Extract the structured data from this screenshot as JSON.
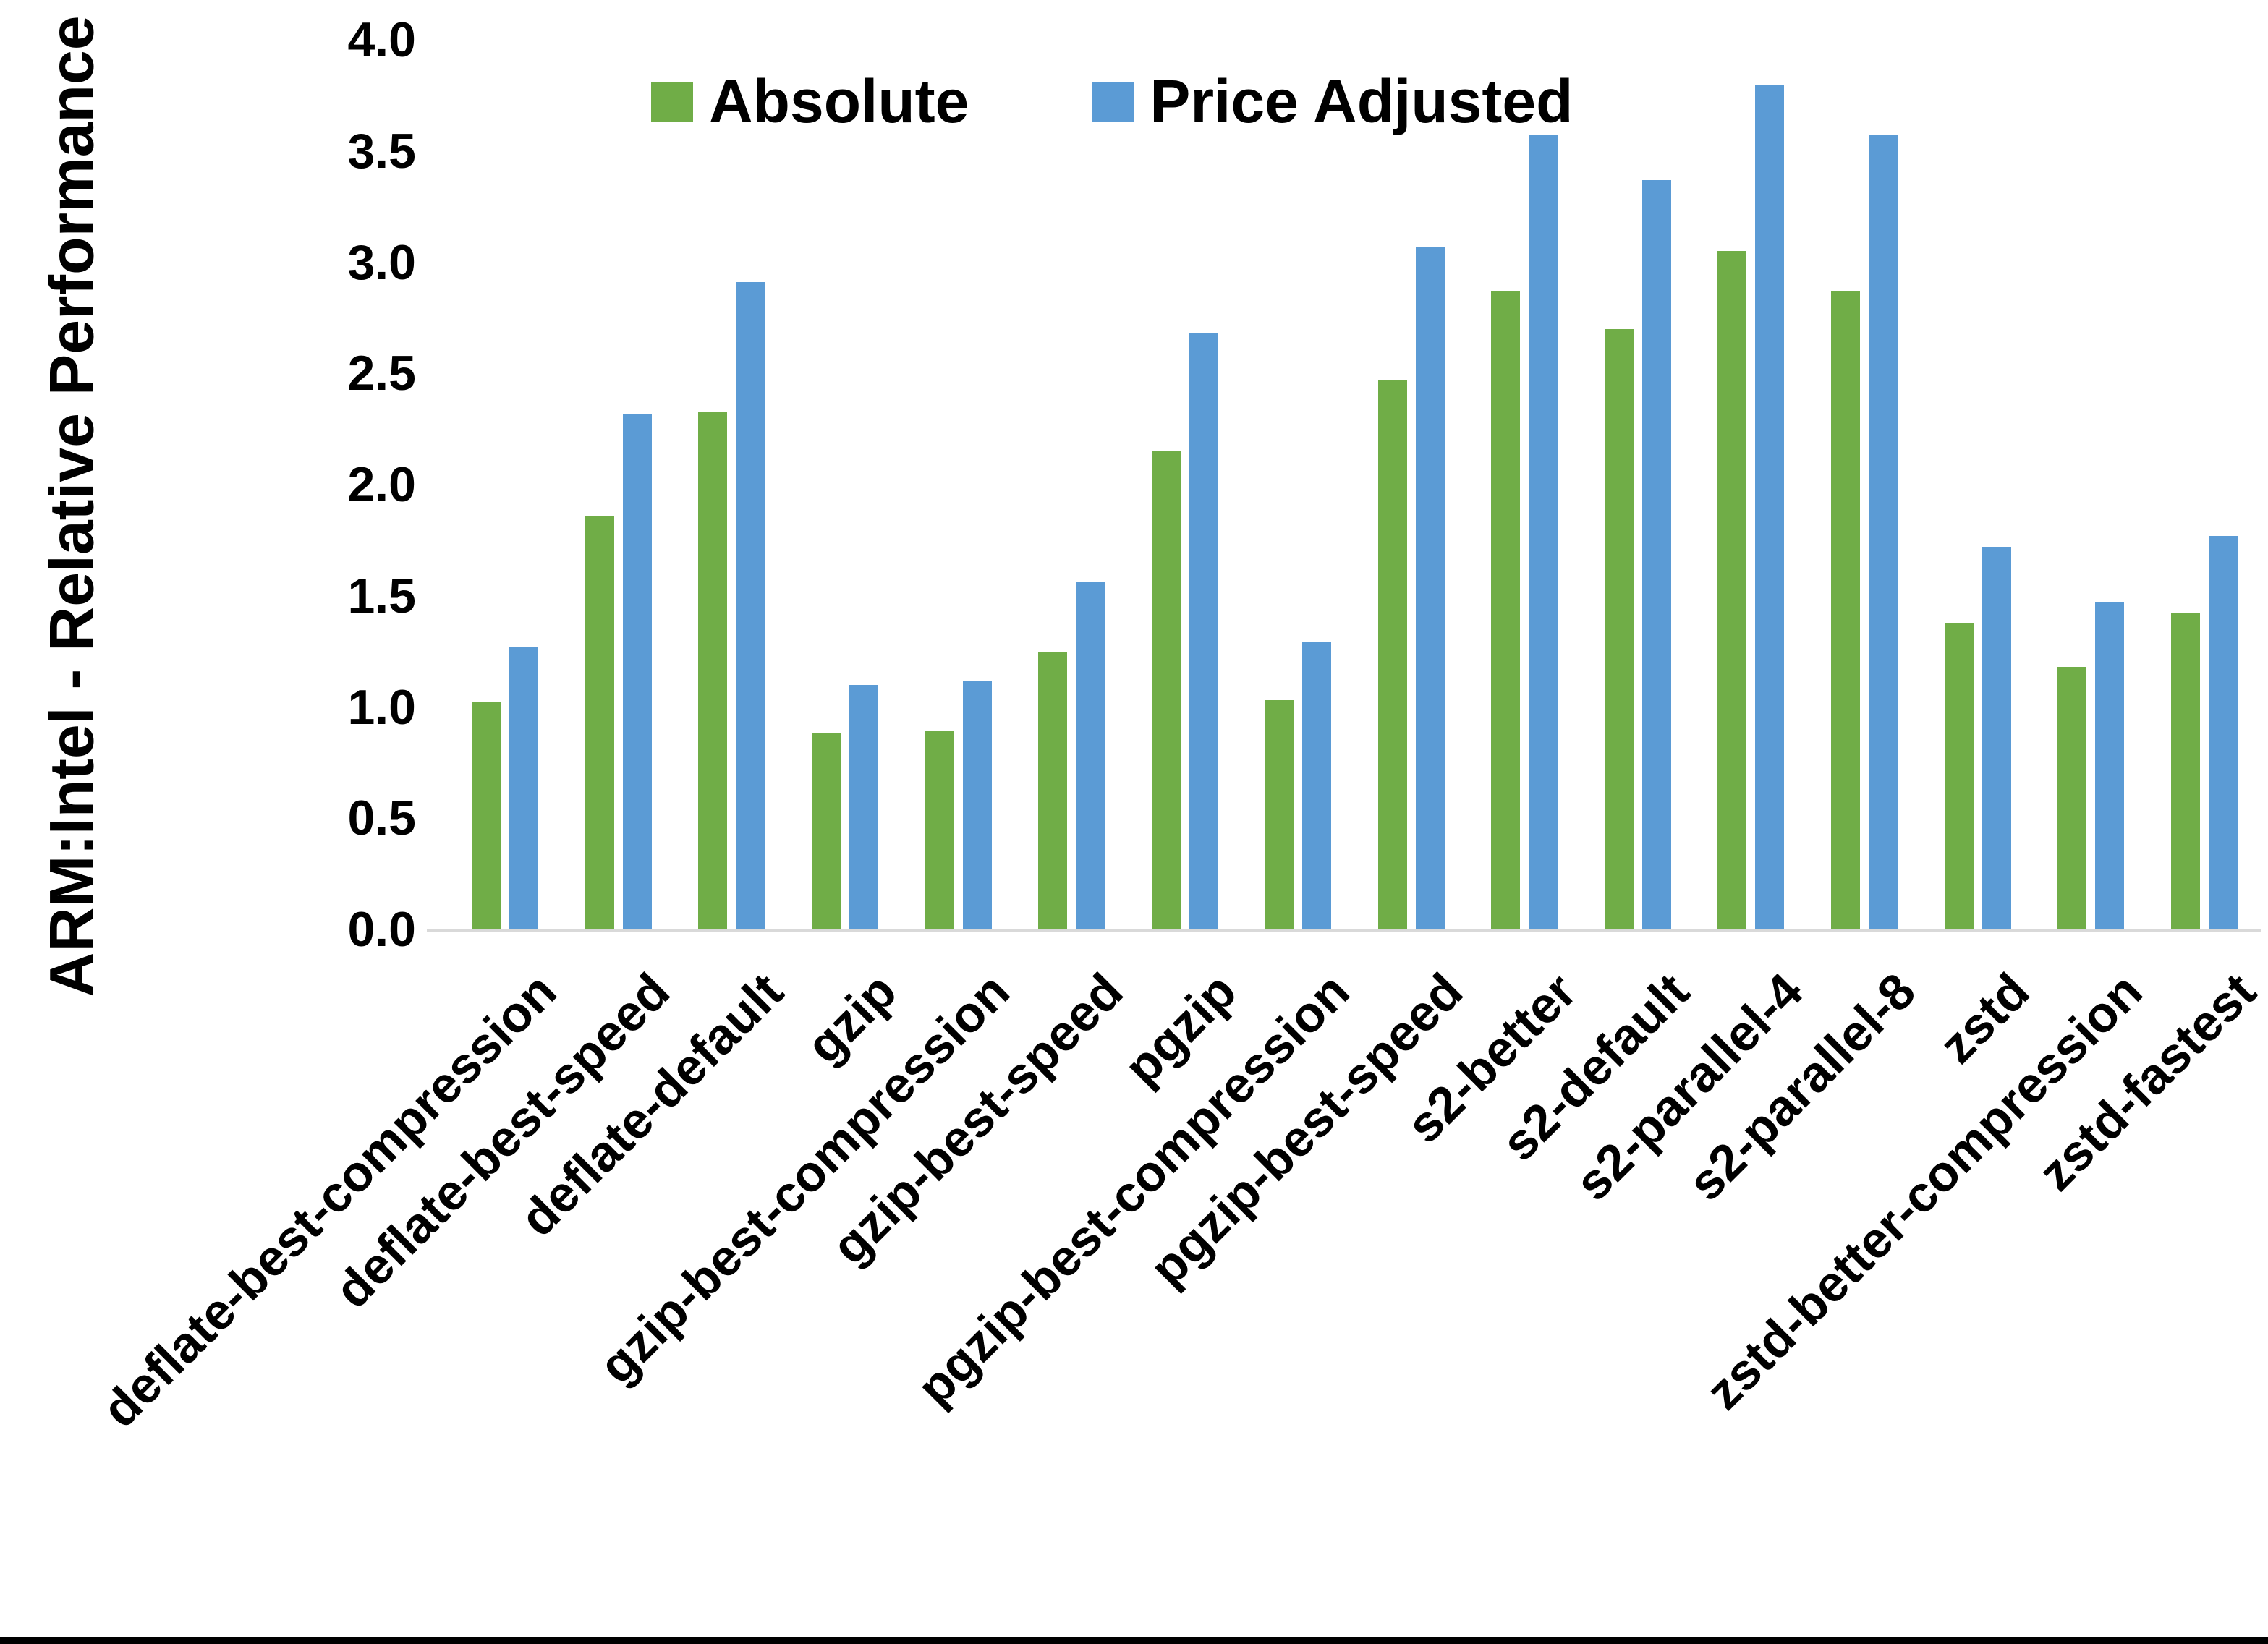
{
  "chart_data": {
    "type": "bar",
    "title": "",
    "xlabel": "",
    "ylabel": "ARM:Intel - Relative Performance",
    "ylim": [
      0.0,
      4.0
    ],
    "y_tick_step": 0.5,
    "y_ticks": [
      "0.0",
      "0.5",
      "1.0",
      "1.5",
      "2.0",
      "2.5",
      "3.0",
      "3.5",
      "4.0"
    ],
    "grid": "off",
    "legend_position": "top-center",
    "categories": [
      "deflate-best-compression",
      "deflate-best-speed",
      "deflate-default",
      "gzip",
      "gzip-best-compression",
      "gzip-best-speed",
      "pgzip",
      "pgzip-best-compression",
      "pgzip-best-speed",
      "s2-better",
      "s2-default",
      "s2-parallel-4",
      "s2-parallel-8",
      "zstd",
      "zstd-better-compression",
      "zstd-fastest"
    ],
    "series": [
      {
        "name": "Absolute",
        "color": "#70AD47",
        "values": [
          1.02,
          1.86,
          2.33,
          0.88,
          0.89,
          1.25,
          2.15,
          1.03,
          2.47,
          2.87,
          2.7,
          3.05,
          2.87,
          1.38,
          1.18,
          1.42
        ]
      },
      {
        "name": "Price Adjusted",
        "color": "#5B9BD5",
        "values": [
          1.27,
          2.32,
          2.91,
          1.1,
          1.12,
          1.56,
          2.68,
          1.29,
          3.07,
          3.57,
          3.37,
          3.8,
          3.57,
          1.72,
          1.47,
          1.77
        ]
      }
    ]
  },
  "colors": {
    "background": "#FFFFFF",
    "axis_line": "#D9D9D9",
    "text": "#000000",
    "bottom_bar": "#000000"
  }
}
